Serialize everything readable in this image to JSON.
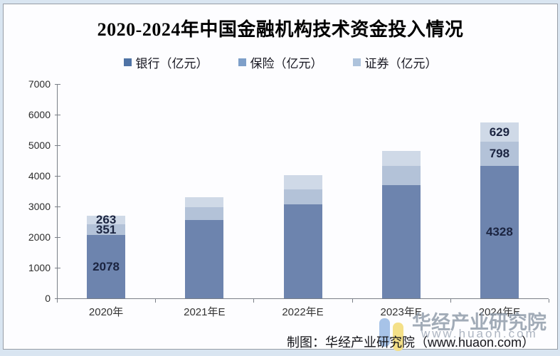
{
  "frame": {
    "outer_bg": "#d9e5f1",
    "panel_bg": "#fdfdff",
    "border_color": "#979da6"
  },
  "title": {
    "text": "2020-2024年中国金融机构技术资金投入情况",
    "color": "#000000"
  },
  "legend": [
    {
      "label": "银行（亿元）",
      "color": "#4f73a5"
    },
    {
      "label": "保险（亿元）",
      "color": "#7e9fc9"
    },
    {
      "label": "证券（亿元）",
      "color": "#aec3dc"
    }
  ],
  "chart_data": {
    "type": "bar",
    "stacked": true,
    "title": "2020-2024年中国金融机构技术资金投入情况",
    "categories": [
      "2020年",
      "2021年E",
      "2022年E",
      "2023年E",
      "2024年E"
    ],
    "series": [
      {
        "name": "银行（亿元）",
        "color": "#6d84ae",
        "values": [
          2078,
          2550,
          3060,
          3700,
          4328
        ],
        "labels": [
          "2078",
          "",
          "",
          "",
          "4328"
        ]
      },
      {
        "name": "保险（亿元）",
        "color": "#b3c2d8",
        "values": [
          351,
          420,
          505,
          635,
          798
        ],
        "labels": [
          "351",
          "",
          "",
          "",
          "798"
        ]
      },
      {
        "name": "证券（亿元）",
        "color": "#cfd9e7",
        "values": [
          263,
          330,
          450,
          490,
          629
        ],
        "labels": [
          "263",
          "",
          "",
          "",
          "629"
        ]
      }
    ],
    "ylim": [
      0,
      7000
    ],
    "y_ticks": [
      0,
      1000,
      2000,
      3000,
      4000,
      5000,
      6000,
      7000
    ],
    "grid": false,
    "legend_position": "top",
    "axis_color": "#7a7f87"
  },
  "watermark": {
    "brand_text": "华经产业研究院",
    "brand_url": "www.huaon.com",
    "logo_color_left": "#a7c3e8",
    "logo_color_right": "#f4e088",
    "text_color": "#97a1ad"
  },
  "caption": {
    "text": "制图：华经产业研究院（www.huaon.com）"
  }
}
